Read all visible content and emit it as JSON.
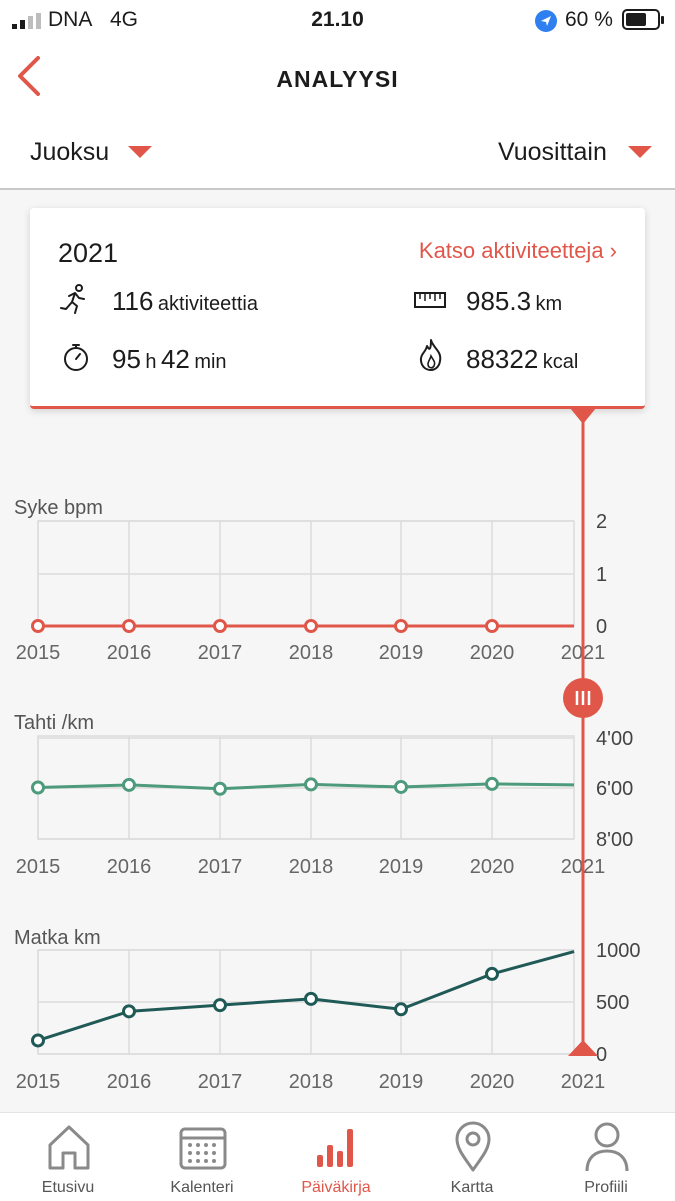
{
  "status_bar": {
    "carrier": "DNA",
    "network": "4G",
    "time": "21.10",
    "battery": "60 %"
  },
  "header": {
    "title": "ANALYYSI",
    "sport_selector": "Juoksu",
    "period_selector": "Vuosittain"
  },
  "summary": {
    "year": "2021",
    "link": "Katso aktiviteetteja ›",
    "activities_value": "116",
    "activities_unit": "aktiviteettia",
    "distance_value": "985.3",
    "distance_unit": "km",
    "time_hours": "95",
    "time_h_unit": "h",
    "time_minutes": "42",
    "time_min_unit": "min",
    "energy_value": "88322",
    "energy_unit": "kcal"
  },
  "colors": {
    "accent": "#e0574a",
    "pace_line": "#4e9a7d",
    "distance_line": "#205a56"
  },
  "chart_data": [
    {
      "type": "line",
      "title": "Syke bpm",
      "x": [
        "2015",
        "2016",
        "2017",
        "2018",
        "2019",
        "2020",
        "2021"
      ],
      "y_ticks": [
        "2",
        "1",
        "0"
      ],
      "ylim": [
        0,
        2
      ],
      "series": [
        {
          "values": [
            0,
            0,
            0,
            0,
            0,
            0,
            0
          ]
        }
      ]
    },
    {
      "type": "line",
      "title": "Tahti /km",
      "x": [
        "2015",
        "2016",
        "2017",
        "2018",
        "2019",
        "2020",
        "2021"
      ],
      "y_ticks": [
        "4'00",
        "6'00",
        "8'00"
      ],
      "ylim_minutes": [
        4,
        8
      ],
      "y_inverted": true,
      "series": [
        {
          "values_minutes": [
            6.0,
            5.9,
            6.05,
            5.88,
            5.98,
            5.86,
            5.9
          ]
        }
      ]
    },
    {
      "type": "line",
      "title": "Matka km",
      "x": [
        "2015",
        "2016",
        "2017",
        "2018",
        "2019",
        "2020",
        "2021"
      ],
      "y_ticks": [
        "1000",
        "500",
        "0"
      ],
      "ylim": [
        0,
        1000
      ],
      "series": [
        {
          "values": [
            130,
            410,
            470,
            530,
            430,
            770,
            985
          ]
        }
      ]
    }
  ],
  "nav": {
    "items": [
      "Etusivu",
      "Kalenteri",
      "Päiväkirja",
      "Kartta",
      "Profiili"
    ],
    "active": "Päiväkirja"
  }
}
